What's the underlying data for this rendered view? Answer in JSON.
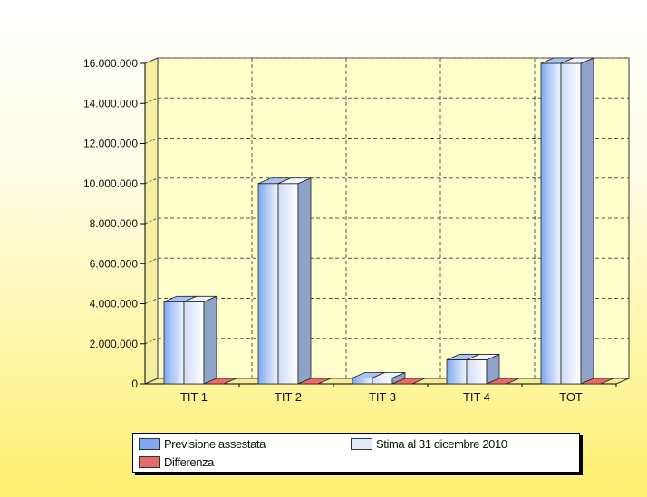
{
  "chart_data": {
    "type": "bar",
    "categories": [
      "TIT 1",
      "TIT 2",
      "TIT 3",
      "TIT 4",
      "TOT"
    ],
    "series": [
      {
        "name": "Previsione assestata",
        "values": [
          4100000,
          10000000,
          300000,
          1200000,
          16000000
        ]
      },
      {
        "name": "Stima al 31 dicembre 2010",
        "values": [
          4100000,
          10000000,
          300000,
          1200000,
          16000000
        ]
      },
      {
        "name": "Differenza",
        "values": [
          0,
          0,
          0,
          0,
          0
        ]
      }
    ],
    "yticks": [
      "0",
      "2.000.000",
      "4.000.000",
      "6.000.000",
      "8.000.000",
      "10.000.000",
      "12.000.000",
      "14.000.000",
      "16.000.000"
    ],
    "ylim": [
      0,
      16000000
    ],
    "grid": true,
    "legend_position": "bottom",
    "colors": {
      "series": [
        "#7fa8f0",
        "#e4ecfb",
        "#e86a6a"
      ],
      "plot_background": "#ffffcc"
    }
  }
}
